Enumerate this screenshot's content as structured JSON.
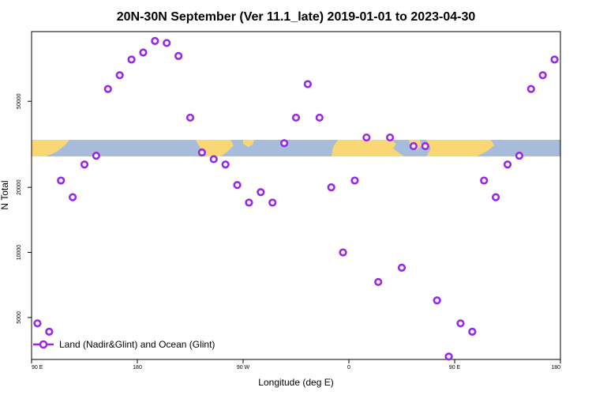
{
  "chart_data": {
    "type": "scatter",
    "title": "20N-30N September (Ver 11.1_late)   2019-01-01 to 2023-04-30",
    "xlabel": "Longitude (deg E)",
    "ylabel": "N Total",
    "x_ticks": [
      {
        "value": 90,
        "label": "90 E"
      },
      {
        "value": 180,
        "label": "180"
      },
      {
        "value": 270,
        "label": "90 W"
      },
      {
        "value": 360,
        "label": "0"
      },
      {
        "value": 450,
        "label": "90 E"
      },
      {
        "value": 540,
        "label": "180"
      }
    ],
    "xlim": [
      90,
      540
    ],
    "y_scale": "log",
    "ylim": [
      3200,
      105000
    ],
    "y_ticks": [
      {
        "value": 5000,
        "label": "5000"
      },
      {
        "value": 10000,
        "label": "10000"
      },
      {
        "value": 20000,
        "label": "20000"
      },
      {
        "value": 50000,
        "label": "50000"
      }
    ],
    "series": [
      {
        "name": "Land (Nadir&Glint) and Ocean (Glint)",
        "color": "#9b27e6",
        "marker": "circle",
        "x": [
          95,
          105,
          115,
          125,
          135,
          145,
          155,
          165,
          175,
          185,
          195,
          205,
          215,
          225,
          235,
          245,
          255,
          265,
          275,
          285,
          295,
          305,
          315,
          325,
          335,
          345,
          355,
          365,
          375,
          385,
          395,
          405,
          415,
          425,
          435,
          445,
          455,
          465,
          475,
          485,
          495,
          505,
          515,
          525,
          535
        ],
        "y": [
          4700,
          4300,
          21500,
          18000,
          25500,
          28000,
          57000,
          66000,
          78000,
          84000,
          95000,
          93000,
          81000,
          42000,
          29000,
          27000,
          25500,
          20500,
          17000,
          19000,
          17000,
          32000,
          42000,
          60000,
          42000,
          20000,
          10000,
          21500,
          34000,
          7300,
          34000,
          8500,
          31000,
          31000,
          6000,
          3300,
          4700,
          4300,
          21500,
          18000,
          25500,
          28000,
          57000,
          66000,
          78000
        ]
      }
    ],
    "legend_position": "bottom-left",
    "background_map": "world map strip for 20N-30N latitudes (land yellow, ocean blue)",
    "colors": {
      "land": "#f9d774",
      "ocean": "#a7bcdb",
      "marker": "#9b27e6"
    }
  }
}
